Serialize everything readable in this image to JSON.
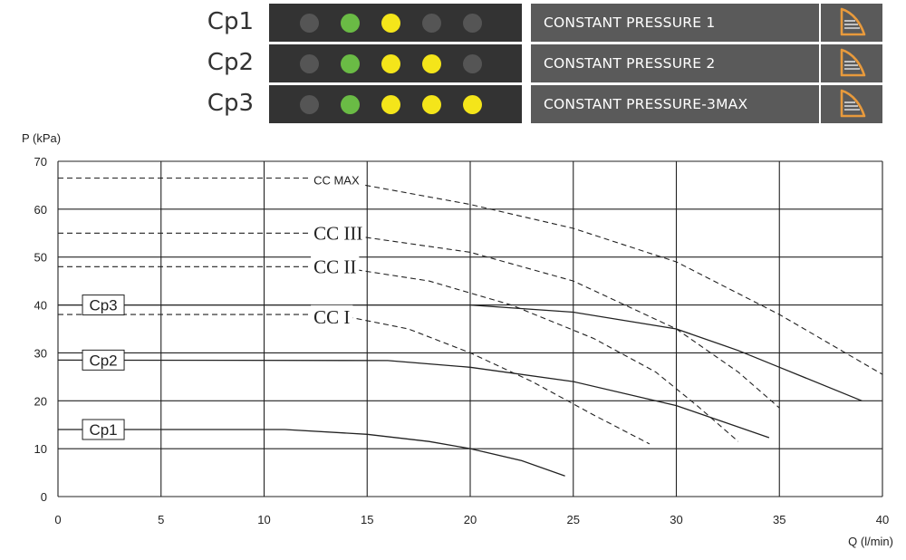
{
  "modes": [
    {
      "label": "Cp1",
      "description": "CONSTANT PRESSURE 1",
      "leds": [
        "off",
        "green",
        "yellow",
        "off",
        "off"
      ]
    },
    {
      "label": "Cp2",
      "description": "CONSTANT PRESSURE 2",
      "leds": [
        "off",
        "green",
        "yellow",
        "yellow",
        "off"
      ]
    },
    {
      "label": "Cp3",
      "description": "CONSTANT PRESSURE-3MAX",
      "leds": [
        "off",
        "green",
        "yellow",
        "yellow",
        "yellow"
      ]
    }
  ],
  "led_colors": {
    "off": "#555555",
    "green": "#6abb45",
    "yellow": "#f4e51a"
  },
  "icon_color": "#e89a3c",
  "icon": "constant-pressure-curve-icon",
  "chart_data": {
    "type": "line",
    "ylabel": "P (kPa)",
    "xlabel": "Q (l/min)",
    "xlim": [
      0,
      40
    ],
    "ylim": [
      0,
      70
    ],
    "xticks": [
      0,
      5,
      10,
      15,
      20,
      25,
      30,
      35,
      40
    ],
    "yticks": [
      0,
      10,
      20,
      30,
      40,
      50,
      60,
      70
    ],
    "grid": true,
    "series": [
      {
        "name": "Cp1",
        "style": "solid",
        "points": [
          [
            0,
            14
          ],
          [
            11,
            14
          ],
          [
            15,
            13
          ],
          [
            18,
            11.5
          ],
          [
            20,
            10
          ],
          [
            22.5,
            7.5
          ],
          [
            24.6,
            4.3
          ]
        ]
      },
      {
        "name": "Cp2",
        "style": "solid",
        "points": [
          [
            0,
            28.5
          ],
          [
            16,
            28.4
          ],
          [
            20,
            27
          ],
          [
            25,
            24
          ],
          [
            30,
            19
          ],
          [
            34.5,
            12.3
          ]
        ]
      },
      {
        "name": "Cp3",
        "style": "solid",
        "points": [
          [
            0,
            40
          ],
          [
            20,
            40
          ],
          [
            25,
            38.5
          ],
          [
            30,
            35
          ],
          [
            33,
            30.5
          ],
          [
            35,
            27
          ],
          [
            39,
            20
          ]
        ]
      },
      {
        "name": "CC I",
        "style": "dashed",
        "points": [
          [
            0,
            38
          ],
          [
            13.5,
            38
          ],
          [
            17,
            35
          ],
          [
            20,
            30
          ],
          [
            23,
            24
          ],
          [
            26,
            17
          ],
          [
            28.7,
            11
          ]
        ]
      },
      {
        "name": "CC II",
        "style": "dashed",
        "points": [
          [
            0,
            48
          ],
          [
            13.5,
            48
          ],
          [
            18,
            45
          ],
          [
            22,
            40
          ],
          [
            26,
            33
          ],
          [
            29,
            26
          ],
          [
            31,
            19
          ],
          [
            33,
            11.5
          ]
        ]
      },
      {
        "name": "CC III",
        "style": "dashed",
        "points": [
          [
            0,
            55
          ],
          [
            13.5,
            55
          ],
          [
            20,
            51
          ],
          [
            25,
            45
          ],
          [
            30,
            35
          ],
          [
            33,
            26
          ],
          [
            35,
            18.5
          ]
        ]
      },
      {
        "name": "CC MAX",
        "style": "dashed",
        "points": [
          [
            0,
            66.5
          ],
          [
            13,
            66.5
          ],
          [
            20,
            61
          ],
          [
            25,
            56
          ],
          [
            30,
            49
          ],
          [
            35,
            38
          ],
          [
            39,
            28
          ],
          [
            40,
            25.5
          ]
        ]
      }
    ],
    "annotations": [
      {
        "text": "CC MAX",
        "x": 12.4,
        "y": 66.5,
        "font": "sans"
      },
      {
        "text": "CC III",
        "x": 12.4,
        "y": 55,
        "font": "serif"
      },
      {
        "text": "CC II",
        "x": 12.4,
        "y": 48,
        "font": "serif"
      },
      {
        "text": "CC I",
        "x": 12.4,
        "y": 37.5,
        "font": "serif"
      },
      {
        "text": "Cp3",
        "x": 2.2,
        "y": 40,
        "font": "box"
      },
      {
        "text": "Cp2",
        "x": 2.2,
        "y": 28.5,
        "font": "box"
      },
      {
        "text": "Cp1",
        "x": 2.2,
        "y": 14,
        "font": "box"
      }
    ]
  }
}
